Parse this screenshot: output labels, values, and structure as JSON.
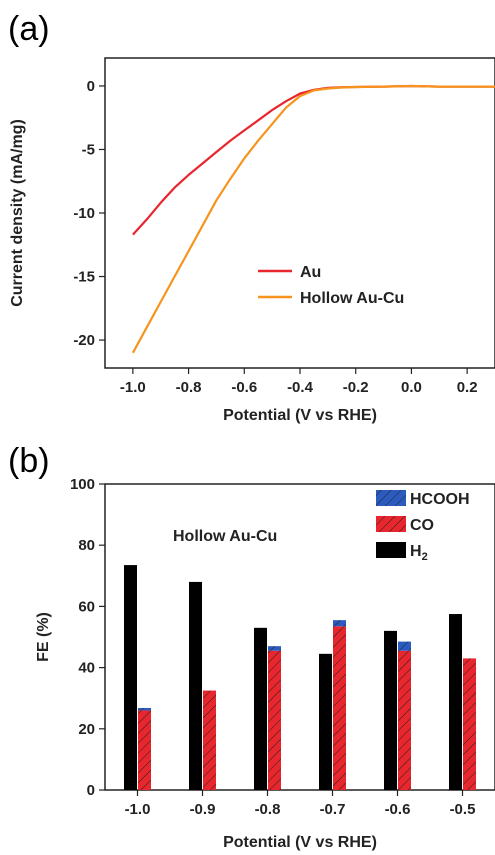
{
  "chart_data": [
    {
      "panel_label": "(a)",
      "type": "line",
      "xlabel": "Potential (V vs RHE)",
      "ylabel": "Current density (mA/mg)",
      "xlim": [
        -1.1,
        0.3
      ],
      "ylim": [
        -22.2,
        2.2
      ],
      "xticks": [
        -1.0,
        -0.8,
        -0.6,
        -0.4,
        -0.2,
        0.0,
        0.2
      ],
      "xtick_labels": [
        "-1.0",
        "-0.8",
        "-0.6",
        "-0.4",
        "-0.2",
        "0.0",
        "0.2"
      ],
      "yticks": [
        0,
        -5,
        -10,
        -15,
        -20
      ],
      "ytick_labels": [
        "0",
        "-5",
        "-10",
        "-15",
        "-20"
      ],
      "grid": false,
      "legend_position": "lower-right",
      "series": [
        {
          "name": "Au",
          "color": "#e8262d",
          "x": [
            -1.0,
            -0.95,
            -0.9,
            -0.85,
            -0.8,
            -0.75,
            -0.7,
            -0.65,
            -0.6,
            -0.55,
            -0.5,
            -0.45,
            -0.4,
            -0.35,
            -0.3,
            -0.25,
            -0.2,
            -0.1,
            0.0,
            0.1,
            0.2,
            0.3
          ],
          "y": [
            -11.7,
            -10.5,
            -9.2,
            -8.0,
            -7.0,
            -6.1,
            -5.2,
            -4.3,
            -3.5,
            -2.7,
            -1.9,
            -1.2,
            -0.6,
            -0.3,
            -0.15,
            -0.1,
            -0.08,
            -0.05,
            0.0,
            -0.05,
            -0.05,
            -0.05
          ]
        },
        {
          "name": "Hollow Au-Cu",
          "color": "#f7941d",
          "x": [
            -1.0,
            -0.95,
            -0.9,
            -0.85,
            -0.8,
            -0.75,
            -0.7,
            -0.65,
            -0.6,
            -0.55,
            -0.5,
            -0.45,
            -0.4,
            -0.35,
            -0.3,
            -0.25,
            -0.2,
            -0.1,
            0.0,
            0.1,
            0.2,
            0.3
          ],
          "y": [
            -21.0,
            -19.0,
            -17.0,
            -15.0,
            -13.0,
            -11.0,
            -9.0,
            -7.3,
            -5.7,
            -4.3,
            -3.0,
            -1.7,
            -0.8,
            -0.35,
            -0.2,
            -0.12,
            -0.08,
            -0.05,
            0.0,
            -0.05,
            -0.05,
            -0.05
          ]
        }
      ]
    },
    {
      "panel_label": "(b)",
      "type": "bar",
      "annotation": "Hollow Au-Cu",
      "xlabel": "Potential (V vs RHE)",
      "ylabel": "FE (%)",
      "ylim": [
        0,
        100
      ],
      "yticks": [
        0,
        20,
        40,
        60,
        80,
        100
      ],
      "ytick_labels": [
        "0",
        "20",
        "40",
        "60",
        "80",
        "100"
      ],
      "categories": [
        "-1.0",
        "-0.9",
        "-0.8",
        "-0.7",
        "-0.6",
        "-0.5"
      ],
      "grid": false,
      "legend_position": "top-right",
      "legend": [
        {
          "label": "HCOOH",
          "color": "#2b5bbf",
          "hatch": true
        },
        {
          "label": "CO",
          "color": "#e8262d",
          "hatch": true
        },
        {
          "label": "H",
          "subscript": "2",
          "color": "#000000",
          "hatch": false
        }
      ],
      "series": [
        {
          "name": "H2",
          "color": "#000000",
          "values": [
            73.5,
            68,
            53,
            44.5,
            52,
            57.5
          ]
        },
        {
          "name": "CO",
          "color": "#e8262d",
          "values": [
            26,
            32.5,
            45.5,
            53.5,
            45.5,
            43
          ]
        },
        {
          "name": "HCOOH",
          "color": "#2b5bbf",
          "values": [
            0.8,
            0,
            1.5,
            2,
            3,
            0
          ]
        }
      ]
    }
  ]
}
